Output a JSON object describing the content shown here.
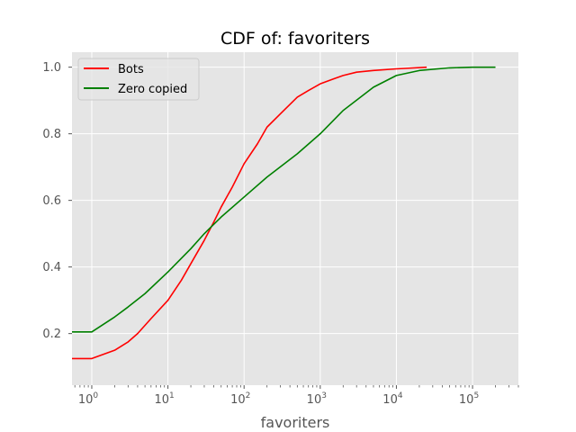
{
  "chart_data": {
    "type": "line",
    "title": "CDF of: favoriters",
    "xlabel": "favoriters",
    "ylabel": "",
    "xscale": "log",
    "xlim": [
      0.55,
      400000
    ],
    "ylim": [
      0.045,
      1.045
    ],
    "grid": true,
    "legend_position": "top-left",
    "x_ticks": [
      {
        "value": 1,
        "base": "10",
        "exp": "0"
      },
      {
        "value": 10,
        "base": "10",
        "exp": "1"
      },
      {
        "value": 100,
        "base": "10",
        "exp": "2"
      },
      {
        "value": 1000,
        "base": "10",
        "exp": "3"
      },
      {
        "value": 10000,
        "base": "10",
        "exp": "4"
      },
      {
        "value": 100000,
        "base": "10",
        "exp": "5"
      }
    ],
    "y_ticks": [
      {
        "value": 0.2,
        "label": "0.2"
      },
      {
        "value": 0.4,
        "label": "0.4"
      },
      {
        "value": 0.6,
        "label": "0.6"
      },
      {
        "value": 0.8,
        "label": "0.8"
      },
      {
        "value": 1.0,
        "label": "1.0"
      }
    ],
    "series": [
      {
        "name": "Bots",
        "color": "#ff0000",
        "points": [
          [
            0.55,
            0.125
          ],
          [
            1,
            0.125
          ],
          [
            2,
            0.15
          ],
          [
            3,
            0.175
          ],
          [
            4,
            0.2
          ],
          [
            6,
            0.245
          ],
          [
            10,
            0.3
          ],
          [
            15,
            0.36
          ],
          [
            20,
            0.41
          ],
          [
            30,
            0.48
          ],
          [
            40,
            0.535
          ],
          [
            50,
            0.58
          ],
          [
            70,
            0.64
          ],
          [
            100,
            0.71
          ],
          [
            150,
            0.77
          ],
          [
            200,
            0.82
          ],
          [
            300,
            0.86
          ],
          [
            500,
            0.91
          ],
          [
            700,
            0.93
          ],
          [
            1000,
            0.95
          ],
          [
            1500,
            0.965
          ],
          [
            2000,
            0.975
          ],
          [
            3000,
            0.985
          ],
          [
            5000,
            0.99
          ],
          [
            10000,
            0.995
          ],
          [
            25000,
            1.0
          ]
        ]
      },
      {
        "name": "Zero copied",
        "color": "#008000",
        "points": [
          [
            0.55,
            0.205
          ],
          [
            1,
            0.205
          ],
          [
            2,
            0.25
          ],
          [
            3,
            0.28
          ],
          [
            5,
            0.32
          ],
          [
            10,
            0.385
          ],
          [
            20,
            0.455
          ],
          [
            30,
            0.5
          ],
          [
            50,
            0.55
          ],
          [
            100,
            0.61
          ],
          [
            200,
            0.67
          ],
          [
            500,
            0.74
          ],
          [
            1000,
            0.8
          ],
          [
            2000,
            0.87
          ],
          [
            5000,
            0.94
          ],
          [
            10000,
            0.975
          ],
          [
            20000,
            0.99
          ],
          [
            50000,
            0.998
          ],
          [
            100000,
            1.0
          ],
          [
            200000,
            1.0
          ]
        ]
      }
    ]
  }
}
